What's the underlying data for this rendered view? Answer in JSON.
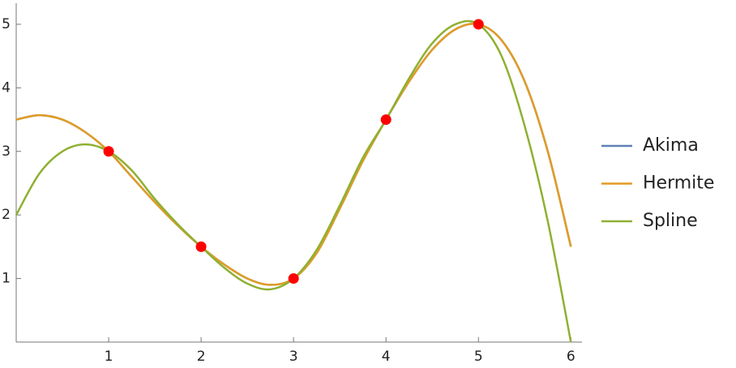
{
  "chart_data": {
    "type": "line",
    "x": [
      0,
      0.25,
      0.5,
      0.75,
      1,
      1.25,
      1.5,
      1.75,
      2,
      2.25,
      2.5,
      2.75,
      3,
      3.25,
      3.5,
      3.75,
      4,
      4.25,
      4.5,
      4.75,
      5,
      5.25,
      5.5,
      5.75,
      6
    ],
    "series": [
      {
        "name": "Akima",
        "color": "#5e81b5",
        "values": [
          3.5,
          3.57,
          3.5,
          3.3,
          3.0,
          2.6,
          2.2,
          1.83,
          1.5,
          1.22,
          1.0,
          0.9,
          1.0,
          1.4,
          2.1,
          2.85,
          3.5,
          4.1,
          4.6,
          4.92,
          5.0,
          4.75,
          4.1,
          3.0,
          1.5
        ]
      },
      {
        "name": "Hermite",
        "color": "#e19c24",
        "values": [
          3.5,
          3.57,
          3.5,
          3.3,
          3.0,
          2.6,
          2.2,
          1.83,
          1.5,
          1.22,
          1.0,
          0.9,
          1.0,
          1.4,
          2.1,
          2.85,
          3.5,
          4.1,
          4.6,
          4.92,
          5.0,
          4.75,
          4.1,
          3.0,
          1.5
        ]
      },
      {
        "name": "Spline",
        "color": "#8fb032",
        "values": [
          2.0,
          2.65,
          3.0,
          3.11,
          3.0,
          2.7,
          2.25,
          1.85,
          1.5,
          1.17,
          0.92,
          0.83,
          1.0,
          1.45,
          2.15,
          2.9,
          3.5,
          4.15,
          4.7,
          5.0,
          5.0,
          4.5,
          3.4,
          1.9,
          0
        ]
      }
    ],
    "points": {
      "color": "#ff0000",
      "x": [
        1,
        2,
        3,
        4,
        5
      ],
      "y": [
        3,
        1.5,
        1,
        3.5,
        5
      ]
    },
    "xlim": [
      0,
      6.12
    ],
    "ylim": [
      0,
      5.28
    ],
    "xticks": [
      1,
      2,
      3,
      4,
      5,
      6
    ],
    "yticks": [
      1,
      2,
      3,
      4,
      5
    ]
  }
}
